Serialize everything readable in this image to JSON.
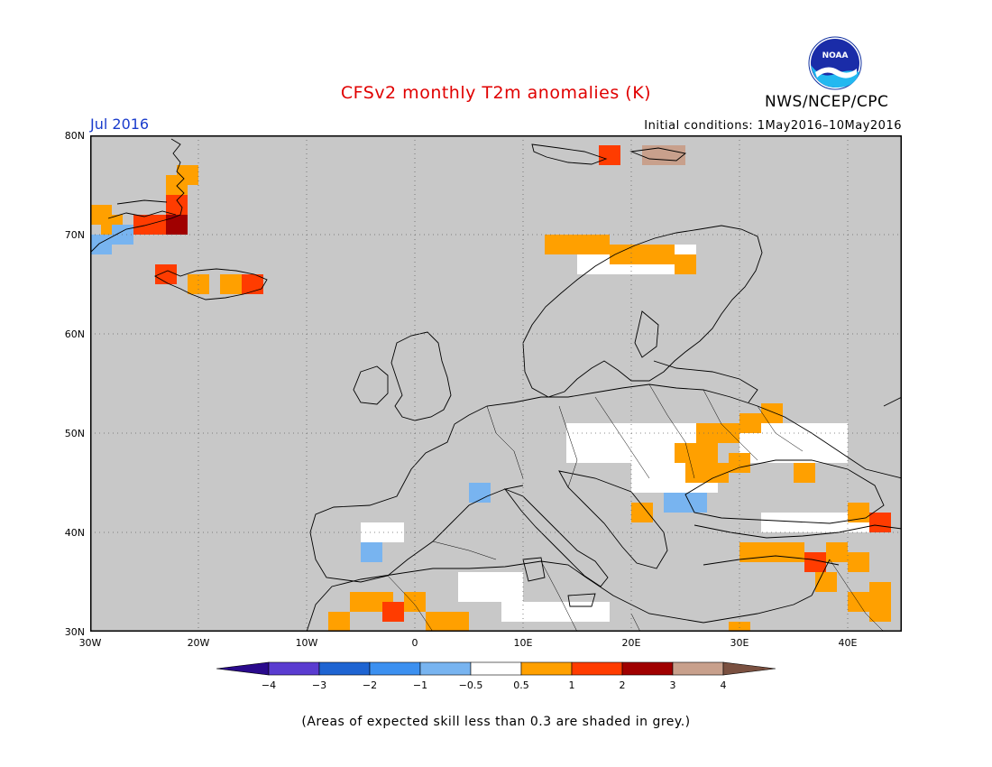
{
  "header": {
    "title": "CFSv2 monthly T2m anomalies (K)",
    "month": "Jul 2016",
    "initial_conditions": "Initial conditions: 1May2016–10May2016",
    "agency": "NWS/NCEP/CPC",
    "logo_text": "NOAA"
  },
  "map": {
    "lat_labels": [
      "80N",
      "70N",
      "60N",
      "50N",
      "40N",
      "30N"
    ],
    "lon_labels": [
      "30W",
      "20W",
      "10W",
      "0",
      "10E",
      "20E",
      "30E",
      "40E"
    ],
    "extent": {
      "lon_min": -30,
      "lon_max": 45,
      "lat_min": 30,
      "lat_max": 80
    },
    "skill_mask_color": "#c8c8c8",
    "anomaly_cells": [
      {
        "lon": -29,
        "lat": 72,
        "value": 0.7
      },
      {
        "lon": -28,
        "lat": 71,
        "value": 0.7
      },
      {
        "lon": -27,
        "lat": 70,
        "value": -0.7
      },
      {
        "lon": -29,
        "lat": 69,
        "value": -0.7
      },
      {
        "lon": -25,
        "lat": 71,
        "value": 1.5
      },
      {
        "lon": -23,
        "lat": 71,
        "value": 1.5
      },
      {
        "lon": -22,
        "lat": 71,
        "value": 2.5
      },
      {
        "lon": -22,
        "lat": 75,
        "value": 0.7
      },
      {
        "lon": -21,
        "lat": 76,
        "value": 0.7
      },
      {
        "lon": -22,
        "lat": 73,
        "value": 1.5
      },
      {
        "lon": -23,
        "lat": 66,
        "value": 1.5
      },
      {
        "lon": -20,
        "lat": 65,
        "value": 0.7
      },
      {
        "lon": -17,
        "lat": 65,
        "value": 0.7
      },
      {
        "lon": -15,
        "lat": 65,
        "value": 1.5
      },
      {
        "lon": 13,
        "lat": 69,
        "value": 0.7
      },
      {
        "lon": 15,
        "lat": 69,
        "value": 0.7
      },
      {
        "lon": 17,
        "lat": 69,
        "value": 0.7
      },
      {
        "lon": 19,
        "lat": 68,
        "value": 0.7
      },
      {
        "lon": 21,
        "lat": 68,
        "value": 0.7
      },
      {
        "lon": 23,
        "lat": 68,
        "value": 0.7
      },
      {
        "lon": 25,
        "lat": 67,
        "value": 0.7
      },
      {
        "lon": 18,
        "lat": 78,
        "value": 1.5
      },
      {
        "lon": 22,
        "lat": 78,
        "value": 3.5
      },
      {
        "lon": 24,
        "lat": 78,
        "value": 3.5
      },
      {
        "lon": 25,
        "lat": 48,
        "value": 0.7
      },
      {
        "lon": 27,
        "lat": 48,
        "value": 0.7
      },
      {
        "lon": 27,
        "lat": 50,
        "value": 0.7
      },
      {
        "lon": 29,
        "lat": 50,
        "value": 0.7
      },
      {
        "lon": 31,
        "lat": 51,
        "value": 0.7
      },
      {
        "lon": 33,
        "lat": 52,
        "value": 0.7
      },
      {
        "lon": 26,
        "lat": 46,
        "value": 0.7
      },
      {
        "lon": 28,
        "lat": 46,
        "value": 0.7
      },
      {
        "lon": 30,
        "lat": 47,
        "value": 0.7
      },
      {
        "lon": 36,
        "lat": 46,
        "value": 0.7
      },
      {
        "lon": 24,
        "lat": 43,
        "value": -0.7
      },
      {
        "lon": 26,
        "lat": 43,
        "value": -0.7
      },
      {
        "lon": 6,
        "lat": 44,
        "value": -0.7
      },
      {
        "lon": -4,
        "lat": 38,
        "value": -0.7
      },
      {
        "lon": 21,
        "lat": 42,
        "value": 0.7
      },
      {
        "lon": 31,
        "lat": 38,
        "value": 0.7
      },
      {
        "lon": 33,
        "lat": 38,
        "value": 0.7
      },
      {
        "lon": 35,
        "lat": 38,
        "value": 0.7
      },
      {
        "lon": 37,
        "lat": 37,
        "value": 1.5
      },
      {
        "lon": 39,
        "lat": 38,
        "value": 0.7
      },
      {
        "lon": 41,
        "lat": 37,
        "value": 0.7
      },
      {
        "lon": 43,
        "lat": 34,
        "value": 0.7
      },
      {
        "lon": 41,
        "lat": 33,
        "value": 0.7
      },
      {
        "lon": 43,
        "lat": 32,
        "value": 0.7
      },
      {
        "lon": 38,
        "lat": 35,
        "value": 0.7
      },
      {
        "lon": 41,
        "lat": 42,
        "value": 0.7
      },
      {
        "lon": 43,
        "lat": 41,
        "value": 1.5
      },
      {
        "lon": -7,
        "lat": 31,
        "value": 0.7
      },
      {
        "lon": -5,
        "lat": 33,
        "value": 0.7
      },
      {
        "lon": -3,
        "lat": 33,
        "value": 0.7
      },
      {
        "lon": -2,
        "lat": 32,
        "value": 1.5
      },
      {
        "lon": 0,
        "lat": 33,
        "value": 0.7
      },
      {
        "lon": 2,
        "lat": 31,
        "value": 0.7
      },
      {
        "lon": 4,
        "lat": 31,
        "value": 0.7
      },
      {
        "lon": 30,
        "lat": 30,
        "value": 0.7
      }
    ],
    "neutral_cells": [
      {
        "lon": 4,
        "lat": 33,
        "w": 6,
        "h": 3
      },
      {
        "lon": 8,
        "lat": 31,
        "w": 10,
        "h": 2
      },
      {
        "lon": 14,
        "lat": 47,
        "w": 12,
        "h": 4
      },
      {
        "lon": 30,
        "lat": 47,
        "w": 10,
        "h": 4
      },
      {
        "lon": 32,
        "lat": 40,
        "w": 12,
        "h": 2
      },
      {
        "lon": 15,
        "lat": 66,
        "w": 11,
        "h": 3
      },
      {
        "lon": 20,
        "lat": 44,
        "w": 8,
        "h": 3
      },
      {
        "lon": -5,
        "lat": 39,
        "w": 4,
        "h": 2
      }
    ]
  },
  "colorbar": {
    "levels": [
      "−4",
      "−3",
      "−2",
      "−1",
      "−0.5",
      "0.5",
      "1",
      "2",
      "3",
      "4"
    ],
    "colors": [
      "#2a0a8c",
      "#5a3cd0",
      "#1e64d2",
      "#3c90f0",
      "#78b4f0",
      "#ffffff",
      "#ffa000",
      "#ff3c00",
      "#a00000",
      "#c8a08c",
      "#7a5040"
    ]
  },
  "footnote": "(Areas of expected skill less than 0.3 are shaded in grey.)"
}
